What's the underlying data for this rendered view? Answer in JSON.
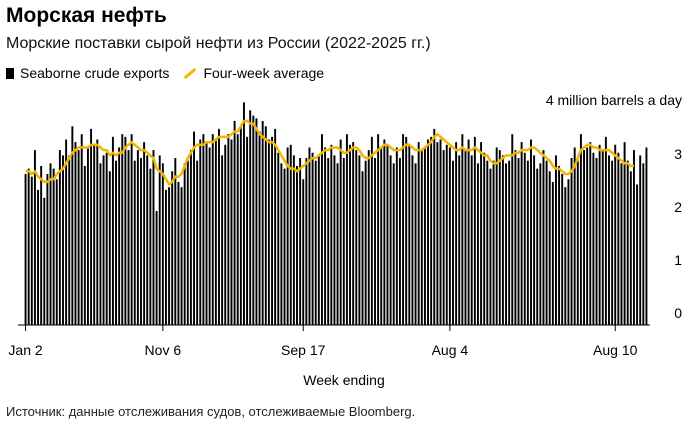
{
  "title": "Морская нефть",
  "subtitle": "Морские поставки сырой нефти из России (2022-2025 гг.)",
  "legend": {
    "bars_label": "Seaborne crude exports",
    "line_label": "Four-week average"
  },
  "source": "Источник: данные отслеживания судов, отслеживаемые Bloomberg.",
  "colors": {
    "bars": "#000000",
    "line": "#f2b600"
  },
  "chart_data": {
    "type": "bar",
    "title": "Морская нефть",
    "xlabel": "Week ending",
    "ylabel": "4 million barrels a day",
    "ylim": [
      0,
      4
    ],
    "y_ticks": [
      0,
      1,
      2,
      3
    ],
    "x_tick_labels": [
      "Jan 2",
      "Nov 6",
      "Sep 17",
      "Aug 4",
      "Aug 10"
    ],
    "x_tick_weeks": [
      0,
      44,
      89,
      136,
      189
    ],
    "grid": false,
    "series": [
      {
        "name": "Seaborne crude exports",
        "type": "bar",
        "values": [
          2.85,
          2.95,
          2.8,
          3.3,
          2.55,
          3.0,
          2.4,
          2.85,
          3.05,
          2.95,
          2.75,
          3.3,
          3.2,
          3.5,
          3.2,
          3.75,
          3.45,
          3.3,
          3.6,
          3.0,
          3.35,
          3.7,
          3.4,
          3.5,
          3.05,
          3.2,
          3.25,
          2.9,
          3.55,
          3.1,
          3.35,
          3.6,
          3.55,
          3.3,
          3.6,
          3.1,
          3.3,
          3.15,
          3.45,
          3.2,
          2.95,
          3.3,
          2.15,
          3.2,
          3.05,
          2.55,
          2.6,
          2.9,
          3.15,
          2.7,
          2.6,
          3.05,
          3.1,
          3.3,
          3.65,
          3.1,
          3.5,
          3.6,
          3.45,
          3.35,
          3.6,
          3.5,
          3.7,
          3.2,
          3.4,
          3.6,
          3.5,
          3.85,
          3.6,
          3.75,
          4.2,
          3.55,
          4.05,
          3.95,
          3.9,
          3.65,
          3.85,
          3.75,
          3.5,
          3.55,
          3.7,
          3.25,
          3.05,
          2.95,
          3.35,
          3.4,
          3.2,
          3.0,
          3.15,
          2.75,
          3.15,
          3.35,
          3.25,
          3.1,
          3.2,
          3.6,
          3.35,
          3.15,
          3.4,
          3.2,
          3.05,
          3.5,
          3.15,
          3.6,
          3.4,
          3.45,
          3.3,
          3.2,
          2.9,
          3.1,
          3.3,
          3.55,
          3.15,
          3.6,
          3.35,
          3.5,
          3.4,
          3.2,
          3.05,
          3.35,
          3.15,
          3.6,
          3.55,
          3.4,
          3.2,
          3.05,
          3.45,
          3.3,
          3.35,
          3.5,
          3.55,
          3.7,
          3.45,
          3.5,
          3.3,
          3.4,
          3.35,
          3.1,
          3.45,
          3.2,
          3.6,
          3.3,
          3.5,
          3.2,
          3.55,
          3.05,
          3.45,
          3.25,
          3.1,
          2.95,
          3.1,
          3.35,
          3.3,
          3.2,
          3.05,
          3.1,
          3.6,
          3.3,
          3.15,
          3.45,
          3.25,
          3.1,
          3.5,
          3.2,
          2.95,
          3.05,
          3.3,
          3.1,
          2.9,
          2.7,
          3.2,
          3.0,
          2.85,
          2.6,
          2.75,
          3.15,
          3.35,
          3.1,
          3.6,
          3.3,
          3.35,
          3.45,
          3.25,
          3.15,
          3.4,
          3.3,
          3.55,
          3.2,
          3.1,
          3.4,
          3.25,
          3.05,
          3.45,
          3.1,
          2.9,
          3.3,
          2.65,
          3.2,
          3.05,
          3.35
        ]
      },
      {
        "name": "Four-week average",
        "type": "line",
        "values": [
          2.9,
          2.9,
          2.85,
          2.9,
          2.8,
          2.75,
          2.7,
          2.7,
          2.75,
          2.75,
          2.85,
          2.9,
          2.95,
          3.05,
          3.15,
          3.25,
          3.3,
          3.35,
          3.35,
          3.35,
          3.35,
          3.4,
          3.4,
          3.4,
          3.35,
          3.3,
          3.3,
          3.2,
          3.25,
          3.2,
          3.25,
          3.25,
          3.35,
          3.4,
          3.45,
          3.4,
          3.35,
          3.3,
          3.3,
          3.25,
          3.2,
          3.15,
          2.95,
          2.9,
          2.85,
          2.75,
          2.65,
          2.7,
          2.8,
          2.8,
          2.85,
          3.0,
          3.15,
          3.25,
          3.35,
          3.4,
          3.4,
          3.4,
          3.45,
          3.45,
          3.45,
          3.5,
          3.55,
          3.55,
          3.55,
          3.55,
          3.6,
          3.65,
          3.65,
          3.75,
          3.85,
          3.85,
          3.8,
          3.8,
          3.7,
          3.6,
          3.55,
          3.5,
          3.45,
          3.45,
          3.4,
          3.3,
          3.2,
          3.1,
          3.0,
          2.95,
          2.95,
          2.9,
          2.95,
          3.0,
          3.05,
          3.1,
          3.15,
          3.15,
          3.2,
          3.25,
          3.3,
          3.3,
          3.35,
          3.35,
          3.35,
          3.3,
          3.25,
          3.25,
          3.3,
          3.35,
          3.35,
          3.3,
          3.2,
          3.15,
          3.15,
          3.2,
          3.25,
          3.3,
          3.35,
          3.4,
          3.4,
          3.35,
          3.3,
          3.3,
          3.3,
          3.35,
          3.4,
          3.4,
          3.35,
          3.3,
          3.3,
          3.3,
          3.35,
          3.4,
          3.45,
          3.55,
          3.6,
          3.55,
          3.5,
          3.45,
          3.4,
          3.35,
          3.3,
          3.3,
          3.35,
          3.3,
          3.3,
          3.3,
          3.35,
          3.3,
          3.25,
          3.2,
          3.2,
          3.1,
          3.05,
          3.05,
          3.1,
          3.15,
          3.2,
          3.2,
          3.2,
          3.25,
          3.25,
          3.3,
          3.3,
          3.3,
          3.35,
          3.35,
          3.3,
          3.25,
          3.2,
          3.15,
          3.1,
          3.0,
          2.95,
          2.95,
          2.9,
          2.85,
          2.85,
          2.9,
          3.0,
          3.15,
          3.3,
          3.35,
          3.4,
          3.4,
          3.35,
          3.35,
          3.3,
          3.3,
          3.3,
          3.3,
          3.25,
          3.2,
          3.15,
          3.1,
          3.05,
          3.05,
          3.0,
          3.0
        ]
      }
    ]
  }
}
